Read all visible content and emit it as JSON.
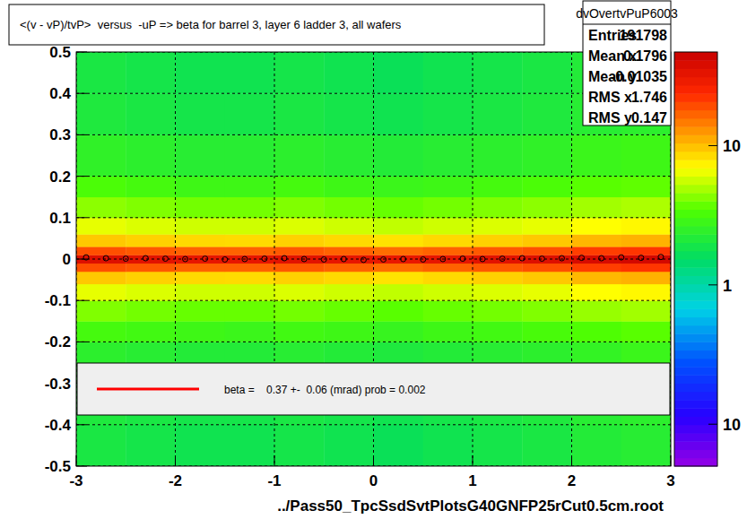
{
  "chart_data": {
    "type": "heatmap",
    "title": "<(v - vP)/tvP>  versus  -uP => beta for barrel 3, layer 6 ladder 3, all wafers",
    "x_label": "../Pass50_TpcSsdSvtPlotsG40GNFP25rCut0.5cm.root",
    "xlim": [
      -3,
      3
    ],
    "ylim": [
      -0.5,
      0.5
    ],
    "xticks": [
      -3,
      -2,
      -1,
      0,
      1,
      2,
      3
    ],
    "yticks": [
      -0.5,
      -0.4,
      -0.3,
      -0.2,
      -0.1,
      0,
      0.1,
      0.2,
      0.3,
      0.4,
      0.5
    ],
    "grid": true,
    "x_bins": [
      -3,
      -2.5,
      -2,
      -1.5,
      -1,
      -0.5,
      0,
      0.5,
      1,
      1.5,
      2,
      2.5,
      3
    ],
    "y_bins": [
      -0.5,
      -0.4,
      -0.3,
      -0.2,
      -0.15,
      -0.1,
      -0.06,
      -0.03,
      -0.01,
      0.01,
      0.03,
      0.06,
      0.1,
      0.15,
      0.2,
      0.3,
      0.4,
      0.5
    ],
    "cells": [
      [
        2.0,
        1.9,
        1.8,
        1.8,
        1.9,
        1.8,
        1.7,
        1.8,
        1.9,
        2.0,
        2.2,
        2.3
      ],
      [
        2.1,
        2.0,
        1.9,
        1.9,
        2.0,
        1.9,
        1.8,
        1.9,
        2.0,
        2.1,
        2.3,
        2.4
      ],
      [
        2.4,
        2.3,
        2.2,
        2.2,
        2.3,
        2.2,
        2.1,
        2.2,
        2.3,
        2.4,
        2.6,
        2.8
      ],
      [
        3.1,
        3.0,
        2.9,
        2.8,
        3.0,
        2.9,
        2.7,
        2.9,
        3.0,
        3.2,
        3.4,
        3.6
      ],
      [
        4.2,
        4.0,
        3.8,
        3.8,
        4.0,
        3.8,
        3.6,
        3.8,
        4.0,
        4.2,
        4.6,
        4.8
      ],
      [
        6.3,
        6.0,
        5.7,
        5.7,
        6.0,
        5.7,
        5.4,
        5.7,
        6.0,
        6.3,
        6.9,
        7.2
      ],
      [
        9.5,
        9.0,
        8.6,
        8.5,
        9.0,
        8.6,
        8.1,
        8.6,
        9.0,
        9.5,
        10.4,
        10.8
      ],
      [
        19,
        18,
        17,
        17,
        18,
        17,
        16,
        17,
        18,
        19,
        21,
        22
      ],
      [
        36,
        34,
        32,
        32,
        34,
        32,
        31,
        32,
        34,
        36,
        39,
        41
      ],
      [
        19,
        18,
        17,
        17,
        18,
        17,
        16,
        17,
        18,
        19,
        21,
        22
      ],
      [
        9.5,
        9.0,
        8.6,
        8.5,
        9.0,
        8.6,
        8.1,
        8.6,
        9.0,
        9.5,
        10.4,
        10.8
      ],
      [
        6.3,
        6.0,
        5.7,
        5.7,
        6.0,
        5.7,
        5.4,
        5.7,
        6.0,
        6.3,
        6.9,
        7.2
      ],
      [
        4.4,
        4.2,
        4.0,
        4.0,
        4.2,
        4.0,
        3.8,
        4.0,
        4.2,
        4.4,
        4.8,
        5.0
      ],
      [
        3.3,
        3.1,
        2.9,
        2.9,
        3.1,
        2.9,
        2.8,
        2.9,
        3.1,
        3.3,
        3.6,
        3.7
      ],
      [
        2.5,
        2.4,
        2.3,
        2.3,
        2.4,
        2.3,
        2.2,
        2.3,
        2.4,
        2.5,
        2.8,
        2.9
      ],
      [
        2.1,
        2.0,
        1.9,
        1.9,
        2.0,
        1.9,
        1.8,
        1.9,
        2.0,
        2.1,
        2.3,
        2.4
      ],
      [
        2.0,
        1.9,
        1.8,
        1.8,
        1.9,
        1.8,
        1.7,
        1.8,
        1.9,
        2.0,
        2.2,
        2.3
      ]
    ],
    "color_range": [
      0.05,
      47
    ],
    "color_ticks": [
      {
        "value": 10,
        "label": "10"
      },
      {
        "value": 1,
        "label": "1"
      },
      {
        "value": 0.1,
        "label": "10"
      }
    ],
    "series": [
      {
        "type": "scatter",
        "marker": "circle",
        "color": "#000000",
        "x": [
          -2.9,
          -2.7,
          -2.5,
          -2.3,
          -2.1,
          -1.9,
          -1.7,
          -1.5,
          -1.3,
          -1.1,
          -0.9,
          -0.7,
          -0.5,
          -0.3,
          -0.1,
          0.1,
          0.3,
          0.5,
          0.7,
          0.9,
          1.1,
          1.3,
          1.5,
          1.7,
          1.9,
          2.1,
          2.3,
          2.5,
          2.7,
          2.9
        ],
        "values": [
          0.004,
          0.002,
          0.001,
          0.002,
          0.001,
          0,
          0.001,
          -0.001,
          0,
          0.001,
          0.002,
          0,
          -0.001,
          0,
          -0.002,
          -0.001,
          0,
          -0.001,
          0,
          0.001,
          0,
          0.001,
          0.002,
          0.001,
          0.002,
          0.003,
          0.002,
          0.004,
          0.003,
          0.005
        ]
      }
    ],
    "fit": {
      "label": "beta =    0.37 +-  0.06 (mrad) prob = 0.002",
      "color": "#ff0000"
    },
    "stats": {
      "title": "dvOvertvPuP6003",
      "rows": [
        {
          "label": "Entries",
          "value": 191798
        },
        {
          "label": "Mean x",
          "value": 0.1796
        },
        {
          "label": "Mean y",
          "value": -0.01035
        },
        {
          "label": "RMS x",
          "value": 1.746
        },
        {
          "label": "RMS y",
          "value": 0.147
        }
      ]
    }
  }
}
